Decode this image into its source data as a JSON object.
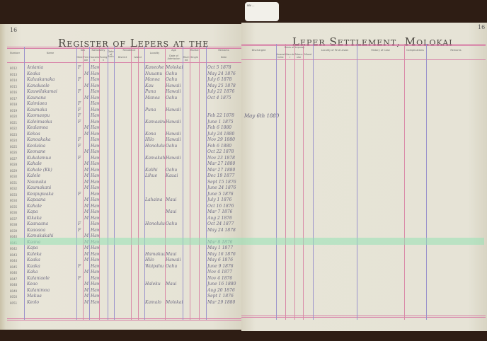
{
  "left_page": {
    "title": "Register of Lepers at the",
    "page_number": "16",
    "headers": [
      "Number",
      "Name",
      "Sex",
      "Male",
      "Female",
      "Nationality",
      "Hawaiian",
      "Foreign",
      "Date of Birth",
      "Residence",
      "District",
      "Island",
      "Locality",
      "Age",
      "Date of Admission",
      "Marital",
      "Married",
      "Single",
      "Remarks",
      "Date"
    ]
  },
  "right_page": {
    "title": "Leper Settlement, Molokai",
    "page_number": "16",
    "headers": [
      "Discharged",
      "Years of Leprosy",
      "Anaesthetic",
      "Macular",
      "Tubercular",
      "Mixed",
      "Locality of First Lesion",
      "History of Case",
      "Complications",
      "Remarks"
    ],
    "note": "May 6th 1880"
  },
  "tag": {
    "text": "INV ..."
  },
  "colors": {
    "pink_rule": "#d98aa8",
    "purple_rule": "#9b93cc",
    "paper": "#e6e3d6",
    "highlight": "#96e1b4",
    "ink": "#6a6880"
  },
  "rows": [
    {
      "num": "8012",
      "name": "Aniania",
      "sex": "F",
      "nat": "Haw",
      "district": "Kaneohe",
      "island": "Molokai",
      "date": "Oct 5 1878"
    },
    {
      "num": "8013",
      "name": "Keaka",
      "sex": "M",
      "nat": "Haw",
      "district": "Nuuanu",
      "island": "Oahu",
      "date": "May 24 1876"
    },
    {
      "num": "8014",
      "name": "Kaluakanaka",
      "sex": "F",
      "nat": "Haw",
      "district": "Manoa",
      "island": "Oahu",
      "date": "July 6 1878"
    },
    {
      "num": "8015",
      "name": "Kanakaole",
      "sex": "M",
      "nat": "Haw",
      "district": "Kau",
      "island": "Hawaii",
      "date": "May 25 1878"
    },
    {
      "num": "8016",
      "name": "Kauwilakamai",
      "sex": "F",
      "nat": "Haw",
      "district": "Puna",
      "island": "Hawaii",
      "date": "July 21 1876"
    },
    {
      "num": "8017",
      "name": "Kaunana",
      "sex": "M",
      "nat": "Haw",
      "district": "Manoa",
      "island": "Oahu",
      "date": "Oct 4 1875"
    },
    {
      "num": "8018",
      "name": "Kaimiaea",
      "sex": "F",
      "nat": "Haw",
      "district": "",
      "island": "",
      "date": ""
    },
    {
      "num": "8019",
      "name": "Kaumaka",
      "sex": "F",
      "nat": "Haw",
      "district": "Puna",
      "island": "Hawaii",
      "date": ""
    },
    {
      "num": "8020",
      "name": "Kaomaopu",
      "sex": "F",
      "nat": "Haw",
      "district": "",
      "island": "",
      "date": "Feb 22 1878"
    },
    {
      "num": "8021",
      "name": "Kaleimaoka",
      "sex": "F",
      "nat": "Haw",
      "district": "Kamaaina",
      "island": "Hawaii",
      "date": "June 1 1875"
    },
    {
      "num": "8022",
      "name": "Kealamoa",
      "sex": "M",
      "nat": "Haw",
      "district": "",
      "island": "",
      "date": "Feb 6 1880"
    },
    {
      "num": "8023",
      "name": "Kekoa",
      "sex": "M",
      "nat": "Haw",
      "district": "Kona",
      "island": "Hawaii",
      "date": "July 24 1880"
    },
    {
      "num": "8024",
      "name": "Kanoakaka",
      "sex": "F",
      "nat": "Haw",
      "district": "Hilo",
      "island": "Hawaii",
      "date": "Nov 29 1880"
    },
    {
      "num": "8025",
      "name": "Keolaloa",
      "sex": "F",
      "nat": "Haw",
      "district": "Honolulu",
      "island": "Oahu",
      "date": "Feb 6 1880"
    },
    {
      "num": "8026",
      "name": "Keonane",
      "sex": "M",
      "nat": "Haw",
      "district": "",
      "island": "",
      "date": "Oct 22 1878"
    },
    {
      "num": "8027",
      "name": "Kukalamua",
      "sex": "F",
      "nat": "Haw",
      "district": "Kamakahe",
      "island": "Hawaii",
      "date": "Nov 23 1878"
    },
    {
      "num": "8028",
      "name": "Kahale",
      "sex": "M",
      "nat": "Haw",
      "district": "",
      "island": "",
      "date": "Mar 27 1880"
    },
    {
      "num": "8029",
      "name": "Kahale (Kk)",
      "sex": "M",
      "nat": "Haw",
      "district": "Kalihi",
      "island": "Oahu",
      "date": "Mar 27 1880"
    },
    {
      "num": "8030",
      "name": "Kalele",
      "sex": "M",
      "nat": "Haw",
      "district": "Lihue",
      "island": "Kauai",
      "date": "Dec 19 1877"
    },
    {
      "num": "8031",
      "name": "Naunaka",
      "sex": "M",
      "nat": "Haw",
      "district": "",
      "island": "",
      "date": "Sept 15 1876"
    },
    {
      "num": "8032",
      "name": "Kaumakani",
      "sex": "M",
      "nat": "Haw",
      "district": "",
      "island": "",
      "date": "June 24 1876"
    },
    {
      "num": "8033",
      "name": "Keapupuaka",
      "sex": "F",
      "nat": "Haw",
      "district": "",
      "island": "",
      "date": "June 5 1876"
    },
    {
      "num": "8034",
      "name": "Kapaana",
      "sex": "M",
      "nat": "Haw",
      "district": "Lahaina",
      "island": "Maui",
      "date": "July 1 1876"
    },
    {
      "num": "8035",
      "name": "Kahale",
      "sex": "M",
      "nat": "Haw",
      "district": "",
      "island": "",
      "date": "Oct 16 1876"
    },
    {
      "num": "8036",
      "name": "Kapa",
      "sex": "M",
      "nat": "Haw",
      "district": "",
      "island": "Maui",
      "date": "Mar 7 1876"
    },
    {
      "num": "8037",
      "name": "Kikaka",
      "sex": "M",
      "nat": "Haw",
      "district": "",
      "island": "",
      "date": "Aug 2 1876"
    },
    {
      "num": "8038",
      "name": "Kaanaana",
      "sex": "F",
      "nat": "Haw",
      "district": "Honolulu",
      "island": "Oahu",
      "date": "Oct 24 1877"
    },
    {
      "num": "8039",
      "name": "Kaaoaoa",
      "sex": "F",
      "nat": "Haw",
      "district": "",
      "island": "",
      "date": "May 24 1878"
    },
    {
      "num": "8040",
      "name": "Kamakakahi",
      "sex": "M",
      "nat": "Haw",
      "district": "",
      "island": "",
      "date": ""
    },
    {
      "num": "8041",
      "name": "Kaana",
      "sex": "M",
      "nat": "Haw",
      "district": "",
      "island": "",
      "date": "Mar 8 1876"
    },
    {
      "num": "8042",
      "name": "Kapa",
      "sex": "M",
      "nat": "Haw",
      "district": "",
      "island": "",
      "date": "May 1 1877"
    },
    {
      "num": "8043",
      "name": "Kaleka",
      "sex": "M",
      "nat": "Haw",
      "district": "Hamakua",
      "island": "Maui",
      "date": "May 16 1876"
    },
    {
      "num": "8044",
      "name": "Kaaka",
      "sex": "M",
      "nat": "Haw",
      "district": "Hilo",
      "island": "Hawaii",
      "date": "May 6 1876"
    },
    {
      "num": "8045",
      "name": "Kaaka",
      "sex": "F",
      "nat": "Haw",
      "district": "Waipahu",
      "island": "Oahu",
      "date": "June 9 1876"
    },
    {
      "num": "8046",
      "name": "Kaka",
      "sex": "M",
      "nat": "Haw",
      "district": "",
      "island": "",
      "date": "Nov 4 1877"
    },
    {
      "num": "8047",
      "name": "Kalaniaole",
      "sex": "F",
      "nat": "Haw",
      "district": "",
      "island": "",
      "date": "Nov 4 1876"
    },
    {
      "num": "8048",
      "name": "Keao",
      "sex": "M",
      "nat": "Haw",
      "district": "Haleku",
      "island": "Maui",
      "date": "June 16 1880"
    },
    {
      "num": "8049",
      "name": "Kalanimoa",
      "sex": "M",
      "nat": "Haw",
      "district": "",
      "island": "",
      "date": "Aug 20 1876"
    },
    {
      "num": "8050",
      "name": "Makua",
      "sex": "M",
      "nat": "Haw",
      "district": "",
      "island": "",
      "date": "Sept 1 1876"
    },
    {
      "num": "8051",
      "name": "Keolo",
      "sex": "M",
      "nat": "Haw",
      "district": "Kamalo",
      "island": "Molokai",
      "date": "Mar 29 1880"
    }
  ]
}
